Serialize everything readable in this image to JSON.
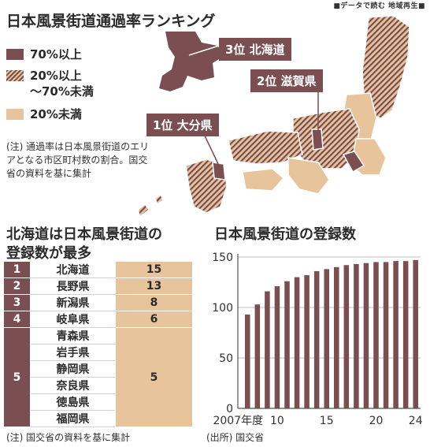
{
  "header_tag": "■データで読む 地域再生■",
  "map": {
    "title": "日本風景街道通過率ランキング",
    "legend": [
      {
        "label": "70%以上",
        "pattern": "solid"
      },
      {
        "label": "20%以上\n～70%未満",
        "pattern": "hatch"
      },
      {
        "label": "20%未満",
        "pattern": "light"
      }
    ],
    "callouts": [
      {
        "text": "3位 北海道"
      },
      {
        "text": "2位 滋賀県"
      },
      {
        "text": "1位 大分県"
      }
    ],
    "note": "(注) 通過率は日本風景街道のエリアとなる市区町村数の割合。国交省の資料を基に集計",
    "colors": {
      "dark": "#7b4f52",
      "light": "#e8c49c",
      "line": "#ffffff"
    }
  },
  "table": {
    "title_line1": "北海道は日本風景街道の",
    "title_line2": "登録数が最多",
    "rows": [
      {
        "rank": "1",
        "prefs": [
          "北海道"
        ],
        "count": "15"
      },
      {
        "rank": "2",
        "prefs": [
          "長野県"
        ],
        "count": "13"
      },
      {
        "rank": "3",
        "prefs": [
          "新潟県"
        ],
        "count": "8"
      },
      {
        "rank": "4",
        "prefs": [
          "岐阜県"
        ],
        "count": "6"
      },
      {
        "rank": "5",
        "prefs": [
          "青森県",
          "岩手県",
          "静岡県",
          "奈良県",
          "徳島県",
          "福岡県"
        ],
        "count": "5"
      }
    ],
    "note": "(注) 国交省の資料を基に集計"
  },
  "chart_data": {
    "type": "bar",
    "title": "日本風景街道の登録数",
    "xlabel": "",
    "ylabel": "",
    "categories": [
      "2007",
      "2008",
      "2009",
      "2010",
      "2011",
      "2012",
      "2013",
      "2014",
      "2015",
      "2016",
      "2017",
      "2018",
      "2019",
      "2020",
      "2021",
      "2022",
      "2023",
      "2024"
    ],
    "x_tick_labels": [
      {
        "category": "2007",
        "label": "2007年度"
      },
      {
        "category": "2010",
        "label": "10"
      },
      {
        "category": "2015",
        "label": "15"
      },
      {
        "category": "2020",
        "label": "20"
      },
      {
        "category": "2024",
        "label": "24"
      }
    ],
    "values": [
      93,
      103,
      116,
      121,
      126,
      130,
      132,
      136,
      138,
      140,
      142,
      143,
      144,
      145,
      145,
      146,
      146,
      147
    ],
    "ylim": [
      0,
      150
    ],
    "yticks": [
      0,
      50,
      100,
      150
    ],
    "grid": true,
    "bar_color": "#7b4f52",
    "source": "(出所) 国交省"
  }
}
